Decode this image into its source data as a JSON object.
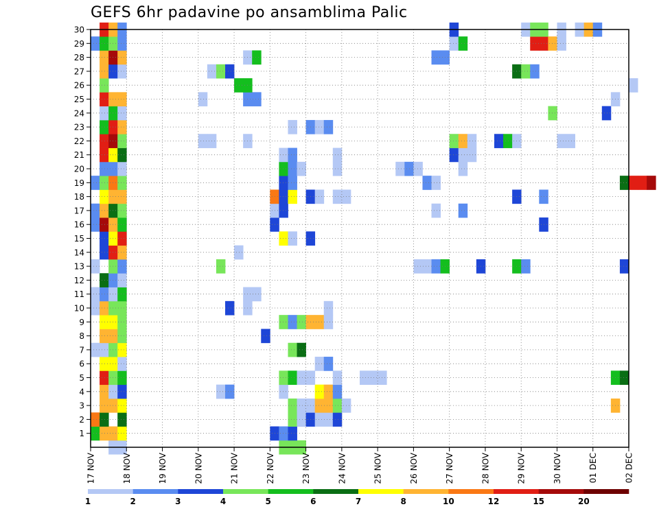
{
  "chart_data": {
    "type": "heatmap",
    "title": "GEFS 6hr padavine po ansamblima Palic",
    "x_tick_labels": [
      "17 NOV",
      "18 NOV",
      "19 NOV",
      "20 NOV",
      "21 NOV",
      "22 NOV",
      "23 NOV",
      "24 NOV",
      "25 NOV",
      "26 NOV",
      "27 NOV",
      "28 NOV",
      "29 NOV",
      "30 NOV",
      "01 DEC",
      "02 DEC"
    ],
    "y_tick_labels": [
      "1",
      "2",
      "3",
      "4",
      "5",
      "6",
      "7",
      "8",
      "9",
      "10",
      "11",
      "12",
      "13",
      "14",
      "15",
      "16",
      "17",
      "18",
      "19",
      "20",
      "21",
      "22",
      "23",
      "24",
      "25",
      "26",
      "27",
      "28",
      "29",
      "30"
    ],
    "x_range": [
      "17 NOV 00Z",
      "02 DEC 00Z"
    ],
    "y_range": [
      0,
      30
    ],
    "grid": "dotted",
    "x_start_date": "2019-11-17",
    "colorbar": {
      "levels": [
        "1",
        "2",
        "3",
        "4",
        "5",
        "6",
        "7",
        "8",
        "10",
        "12",
        "15",
        "20"
      ],
      "colors": [
        "#b4c8f5",
        "#5a8cf0",
        "#1e46d7",
        "#78e65a",
        "#14be1e",
        "#0a6e14",
        "#ffff00",
        "#ffb432",
        "#fa7814",
        "#e11e14",
        "#a50a0a",
        "#6e0000"
      ]
    },
    "series": [
      {
        "m": 0,
        "d": [
          [
            0.6,
            0.25
          ],
          [
            0.9,
            0.25
          ],
          [
            1.6,
            0.5
          ],
          [
            1.1,
            0.75
          ],
          [
            4.3,
            5.25
          ],
          [
            4.3,
            5.5
          ],
          [
            4.3,
            5.75
          ]
        ]
      },
      {
        "m": 1,
        "d": [
          [
            5.2,
            0
          ],
          [
            9.5,
            0.25
          ],
          [
            9.7,
            0.5
          ],
          [
            7.1,
            0.75
          ],
          [
            3.2,
            5
          ],
          [
            2.1,
            5.25
          ],
          [
            3.4,
            5.5
          ]
        ]
      },
      {
        "m": 2,
        "d": [
          [
            11.0,
            0
          ],
          [
            6.6,
            0.25
          ],
          [
            6.0,
            0.75
          ],
          [
            4.3,
            5.5
          ],
          [
            3.1,
            5.75
          ],
          [
            1.5,
            5.75
          ],
          [
            3.1,
            6
          ],
          [
            1.1,
            6.25
          ],
          [
            1.1,
            6.5
          ],
          [
            3.6,
            6.75
          ]
        ]
      },
      {
        "m": 3,
        "d": [
          [
            8.6,
            0.25
          ],
          [
            8.6,
            0.5
          ],
          [
            7.4,
            0.75
          ],
          [
            4.3,
            5.5
          ],
          [
            1.4,
            5.75
          ],
          [
            1.4,
            6
          ],
          [
            8.1,
            6.25
          ],
          [
            8.4,
            6.5
          ],
          [
            4.2,
            6.75
          ],
          [
            1.4,
            7
          ],
          [
            8.6,
            14.5
          ]
        ]
      },
      {
        "m": 4,
        "d": [
          [
            9.5,
            0.25
          ],
          [
            1.5,
            0.5
          ],
          [
            3.2,
            0.75
          ],
          [
            1.1,
            3.5
          ],
          [
            2.2,
            3.75
          ],
          [
            1.4,
            5.25
          ],
          [
            7.5,
            6.25
          ],
          [
            9.6,
            6.5
          ],
          [
            2.1,
            6.75
          ]
        ]
      },
      {
        "m": 5,
        "d": [
          [
            12.4,
            0.25
          ],
          [
            4.6,
            0.5
          ],
          [
            5.3,
            0.75
          ],
          [
            4.5,
            5.25
          ],
          [
            5.8,
            5.5
          ],
          [
            1.4,
            5.75
          ],
          [
            1.4,
            6
          ],
          [
            1.2,
            6.75
          ],
          [
            1.5,
            7.5
          ],
          [
            1.5,
            7.75
          ],
          [
            1.6,
            8
          ],
          [
            5.3,
            14.5
          ],
          [
            6.4,
            14.75
          ]
        ]
      },
      {
        "m": 6,
        "d": [
          [
            7.7,
            0.25
          ],
          [
            7.6,
            0.5
          ],
          [
            1.3,
            0.75
          ],
          [
            1.1,
            6.25
          ],
          [
            2.2,
            6.5
          ]
        ]
      },
      {
        "m": 7,
        "d": [
          [
            1.4,
            0
          ],
          [
            1.5,
            0.25
          ],
          [
            4.6,
            0.5
          ],
          [
            7.5,
            0.75
          ],
          [
            4.3,
            5.5
          ],
          [
            6.6,
            5.75
          ]
        ]
      },
      {
        "m": 8,
        "d": [
          [
            8.6,
            0.25
          ],
          [
            8.6,
            0.5
          ],
          [
            4.6,
            0.75
          ],
          [
            3.2,
            4.75
          ]
        ]
      },
      {
        "m": 9,
        "d": [
          [
            7.5,
            0.25
          ],
          [
            7.5,
            0.5
          ],
          [
            4.6,
            0.75
          ],
          [
            4.5,
            5.25
          ],
          [
            2.1,
            5.5
          ],
          [
            4.3,
            5.75
          ],
          [
            8.7,
            6
          ],
          [
            9.3,
            6.25
          ],
          [
            1.1,
            6.5
          ]
        ]
      },
      {
        "m": 10,
        "d": [
          [
            1.2,
            0
          ],
          [
            8.6,
            0.25
          ],
          [
            4.6,
            0.5
          ],
          [
            4.3,
            0.75
          ],
          [
            3.2,
            3.75
          ],
          [
            1.3,
            4.25
          ],
          [
            1.5,
            6.5
          ]
        ]
      },
      {
        "m": 11,
        "d": [
          [
            1.1,
            0
          ],
          [
            2.2,
            0.25
          ],
          [
            1.5,
            0.5
          ],
          [
            5.2,
            0.75
          ],
          [
            1.2,
            4.25
          ],
          [
            1.1,
            4.5
          ]
        ]
      },
      {
        "m": 12,
        "d": [
          [
            6.8,
            0.25
          ],
          [
            2.1,
            0.5
          ],
          [
            1.5,
            0.75
          ]
        ]
      },
      {
        "m": 13,
        "d": [
          [
            1.4,
            0
          ],
          [
            4.6,
            0.5
          ],
          [
            2.1,
            0.75
          ],
          [
            4.6,
            3.5
          ],
          [
            1.4,
            9
          ],
          [
            1.4,
            9.25
          ],
          [
            2.2,
            9.5
          ],
          [
            5.3,
            9.75
          ],
          [
            3.5,
            10.75
          ],
          [
            5.3,
            11.75
          ],
          [
            2.1,
            12
          ],
          [
            3.3,
            14.75
          ]
        ]
      },
      {
        "m": 14,
        "d": [
          [
            3.2,
            0.25
          ],
          [
            12.4,
            0.5
          ],
          [
            9.5,
            0.75
          ],
          [
            1.1,
            4
          ]
        ]
      },
      {
        "m": 15,
        "d": [
          [
            3.2,
            0.25
          ],
          [
            7.5,
            0.5
          ],
          [
            12.6,
            0.75
          ],
          [
            7.3,
            5.25
          ],
          [
            1.2,
            5.5
          ],
          [
            3.5,
            6
          ]
        ]
      },
      {
        "m": 16,
        "d": [
          [
            2.1,
            0
          ],
          [
            16.5,
            0.25
          ],
          [
            8.1,
            0.5
          ],
          [
            5.1,
            0.75
          ],
          [
            3.2,
            5
          ],
          [
            3.1,
            12.5
          ]
        ]
      },
      {
        "m": 17,
        "d": [
          [
            2.1,
            0
          ],
          [
            9.4,
            0.25
          ],
          [
            6.1,
            0.5
          ],
          [
            4.6,
            0.75
          ],
          [
            1.4,
            5
          ],
          [
            3.1,
            5.25
          ],
          [
            1.3,
            9.5
          ],
          [
            2.2,
            10.25
          ]
        ]
      },
      {
        "m": 18,
        "d": [
          [
            7.6,
            0.25
          ],
          [
            9.2,
            0.5
          ],
          [
            9.6,
            0.75
          ],
          [
            10.2,
            5
          ],
          [
            3.3,
            5.25
          ],
          [
            7.6,
            5.5
          ],
          [
            3.1,
            6
          ],
          [
            1.3,
            6.25
          ],
          [
            1.5,
            6.75
          ],
          [
            1.5,
            7
          ],
          [
            3.3,
            11.75
          ],
          [
            2.2,
            12.5
          ]
        ]
      },
      {
        "m": 19,
        "d": [
          [
            2.1,
            0
          ],
          [
            4.5,
            0.25
          ],
          [
            10.3,
            0.5
          ],
          [
            4.8,
            0.75
          ],
          [
            3.1,
            5.25
          ],
          [
            2.1,
            5.5
          ],
          [
            2.2,
            9.25
          ],
          [
            1.1,
            9.5
          ],
          [
            6.7,
            14.75
          ],
          [
            13.6,
            15
          ],
          [
            13.2,
            15.25
          ],
          [
            16.8,
            15.5
          ]
        ]
      },
      {
        "m": 20,
        "d": [
          [
            2.1,
            0.25
          ],
          [
            2.1,
            0.5
          ],
          [
            1.2,
            0.75
          ],
          [
            5.6,
            5.25
          ],
          [
            2.1,
            5.5
          ],
          [
            1.1,
            5.75
          ],
          [
            1.2,
            6.75
          ],
          [
            1.5,
            8.5
          ],
          [
            2.1,
            8.75
          ],
          [
            1.5,
            9
          ],
          [
            1.2,
            10.25
          ]
        ]
      },
      {
        "m": 21,
        "d": [
          [
            12.2,
            0.25
          ],
          [
            7.8,
            0.5
          ],
          [
            6.4,
            0.75
          ],
          [
            1.3,
            5.25
          ],
          [
            2.1,
            5.5
          ],
          [
            1.1,
            6.75
          ],
          [
            3.2,
            10
          ],
          [
            1.3,
            10.25
          ],
          [
            1.1,
            10.5
          ]
        ]
      },
      {
        "m": 22,
        "d": [
          [
            12.6,
            0.25
          ],
          [
            17.1,
            0.5
          ],
          [
            4.6,
            0.75
          ],
          [
            1.1,
            3
          ],
          [
            1.5,
            3.25
          ],
          [
            1.2,
            4.25
          ],
          [
            4.7,
            10
          ],
          [
            9.3,
            10.25
          ],
          [
            1.1,
            10.5
          ],
          [
            3.2,
            11.25
          ],
          [
            5.2,
            11.5
          ],
          [
            1.3,
            11.75
          ],
          [
            1.2,
            13
          ],
          [
            1.3,
            13.25
          ]
        ]
      },
      {
        "m": 23,
        "d": [
          [
            5.1,
            0.25
          ],
          [
            12.5,
            0.5
          ],
          [
            8.4,
            0.75
          ],
          [
            1.2,
            5.5
          ],
          [
            2.1,
            6
          ],
          [
            1.3,
            6.25
          ],
          [
            2.1,
            6.5
          ]
        ]
      },
      {
        "m": 24,
        "d": [
          [
            1.5,
            0.25
          ],
          [
            5.3,
            0.5
          ],
          [
            1.4,
            0.75
          ],
          [
            4.5,
            12.75
          ],
          [
            3.3,
            14.25
          ]
        ]
      },
      {
        "m": 25,
        "d": [
          [
            13.1,
            0.25
          ],
          [
            8.3,
            0.5
          ],
          [
            9.6,
            0.75
          ],
          [
            1.5,
            3
          ],
          [
            2.1,
            4.25
          ],
          [
            2.2,
            4.5
          ],
          [
            1.3,
            14.5
          ]
        ]
      },
      {
        "m": 26,
        "d": [
          [
            4.8,
            0.25
          ],
          [
            5.3,
            4
          ],
          [
            5.1,
            4.25
          ],
          [
            1.5,
            15
          ]
        ]
      },
      {
        "m": 27,
        "d": [
          [
            9.2,
            0.25
          ],
          [
            3.1,
            0.5
          ],
          [
            1.4,
            0.75
          ],
          [
            1.3,
            3.25
          ],
          [
            4.6,
            3.5
          ],
          [
            3.3,
            3.75
          ],
          [
            6.2,
            11.75
          ],
          [
            4.6,
            12
          ],
          [
            2.1,
            12.25
          ]
        ]
      },
      {
        "m": 28,
        "d": [
          [
            9.2,
            0.25
          ],
          [
            16.6,
            0.5
          ],
          [
            9.5,
            0.75
          ],
          [
            1.3,
            4.25
          ],
          [
            5.6,
            4.5
          ],
          [
            2.1,
            9.5
          ],
          [
            2.2,
            9.75
          ]
        ]
      },
      {
        "m": 29,
        "d": [
          [
            2.1,
            0
          ],
          [
            5.3,
            0.25
          ],
          [
            4.6,
            0.5
          ],
          [
            2.1,
            0.75
          ],
          [
            1.3,
            10
          ],
          [
            5.6,
            10.25
          ],
          [
            13.6,
            12.25
          ],
          [
            13.2,
            12.5
          ],
          [
            9.3,
            12.75
          ],
          [
            1.3,
            13
          ]
        ]
      },
      {
        "m": 30,
        "d": [
          [
            13.2,
            0.25
          ],
          [
            9.6,
            0.5
          ],
          [
            2.1,
            0.75
          ],
          [
            3.1,
            10
          ],
          [
            1.2,
            12
          ],
          [
            4.6,
            12.25
          ],
          [
            4.6,
            12.5
          ],
          [
            1.3,
            13
          ],
          [
            1.4,
            13.5
          ],
          [
            9.3,
            13.75
          ],
          [
            2.2,
            14
          ]
        ]
      }
    ]
  }
}
